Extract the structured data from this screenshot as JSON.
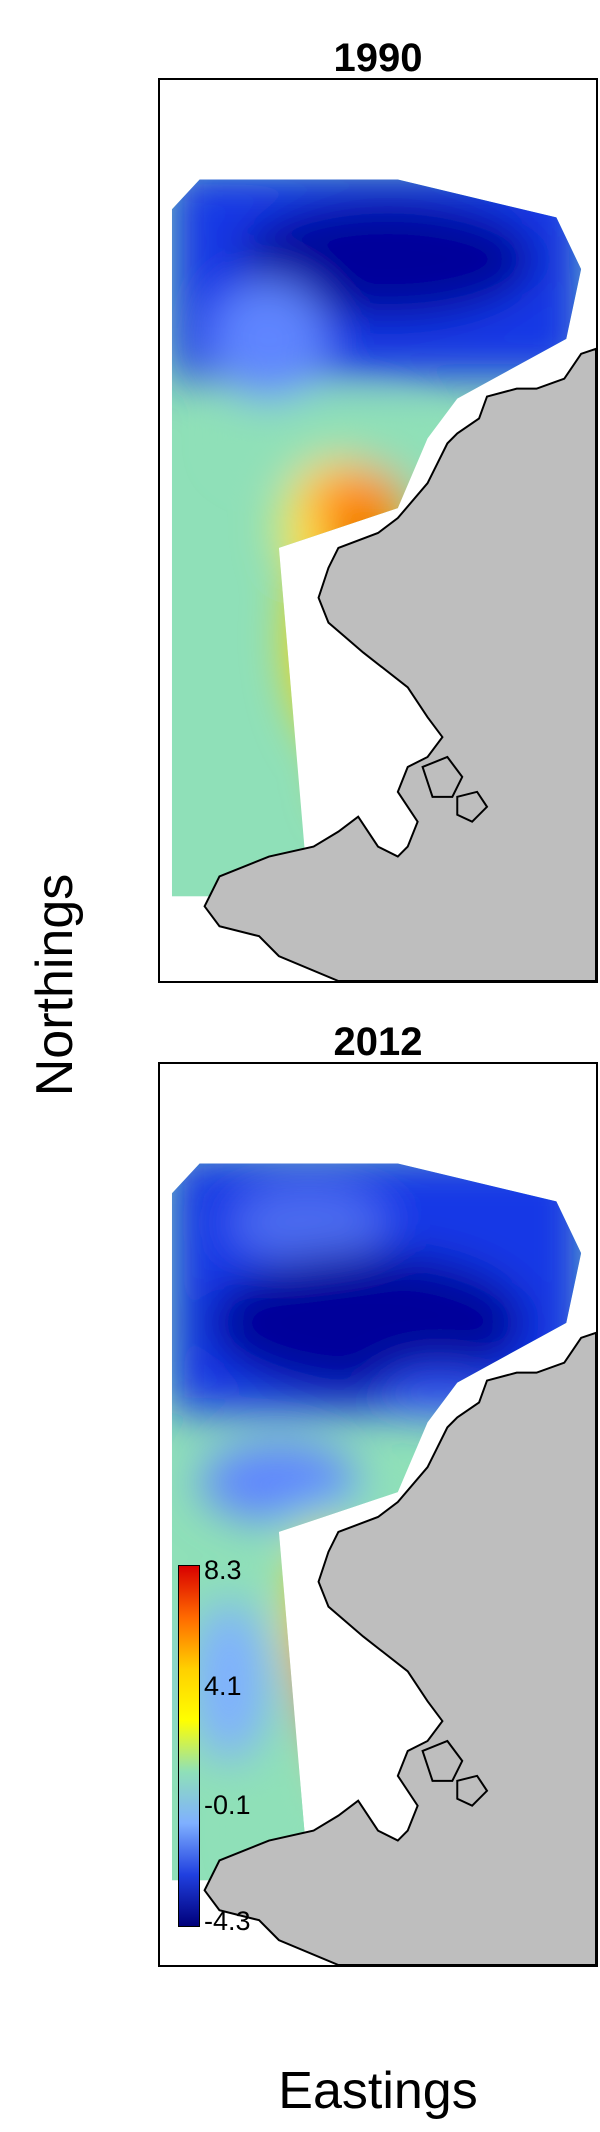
{
  "panels": [
    {
      "title": "1990"
    },
    {
      "title": "2012"
    }
  ],
  "axes": {
    "ylabel": "Northings",
    "xlabel": "Eastings"
  },
  "legend": {
    "ticks": [
      "8.3",
      "4.1",
      "-0.1",
      "-4.3"
    ],
    "max": 8.3,
    "min": -4.3,
    "colors": [
      "#d80000",
      "#ff6a00",
      "#ffd000",
      "#ffff00",
      "#8fe0b8",
      "#7fb0ff",
      "#2040e0",
      "#00007a"
    ]
  },
  "colors": {
    "land": "#bebebe",
    "coast_line": "#000000",
    "frame": "#000000"
  }
}
